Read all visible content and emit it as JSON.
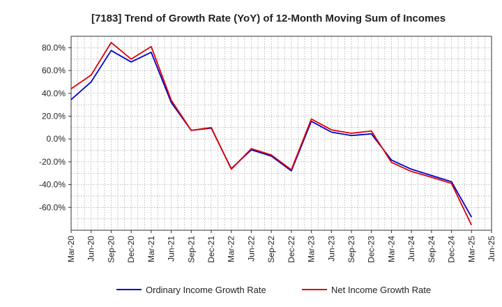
{
  "chart_data": {
    "type": "line",
    "title": "[7183]  Trend of Growth Rate (YoY) of 12-Month Moving Sum of Incomes",
    "xlabel": "",
    "ylabel": "",
    "ylim": [
      -80,
      90
    ],
    "yticks": [
      -60,
      -40,
      -20,
      0,
      20,
      40,
      60,
      80
    ],
    "ytick_labels": [
      "-60.0%",
      "-40.0%",
      "-20.0%",
      "0.0%",
      "20.0%",
      "40.0%",
      "60.0%",
      "80.0%"
    ],
    "x_tick_labels": [
      "Mar-20",
      "Jun-20",
      "Sep-20",
      "Dec-20",
      "Mar-21",
      "Jun-21",
      "Sep-21",
      "Dec-21",
      "Mar-22",
      "Jun-22",
      "Sep-22",
      "Dec-22",
      "Mar-23",
      "Jun-23",
      "Sep-23",
      "Dec-23",
      "Mar-24",
      "Jun-24",
      "Sep-24",
      "Dec-24",
      "Mar-25",
      "Jun-25"
    ],
    "grid": true,
    "legend": "bottom",
    "series": [
      {
        "name": "Ordinary Income Growth Rate",
        "color": "#0000cc",
        "values": [
          34.5,
          50,
          77.5,
          67.5,
          76,
          32,
          7.5,
          9.5,
          -26,
          -9.5,
          -15,
          -28,
          15.5,
          6,
          3,
          4.5,
          -18.5,
          -26.5,
          -32,
          -37.5,
          -68.5
        ]
      },
      {
        "name": "Net Income Growth Rate",
        "color": "#dd0000",
        "values": [
          44,
          56,
          84.5,
          70,
          81,
          34,
          7.5,
          10,
          -26.5,
          -8.5,
          -14,
          -27,
          17.5,
          8,
          5,
          7,
          -20.5,
          -28.5,
          -33.5,
          -39,
          -75.5
        ]
      }
    ]
  }
}
